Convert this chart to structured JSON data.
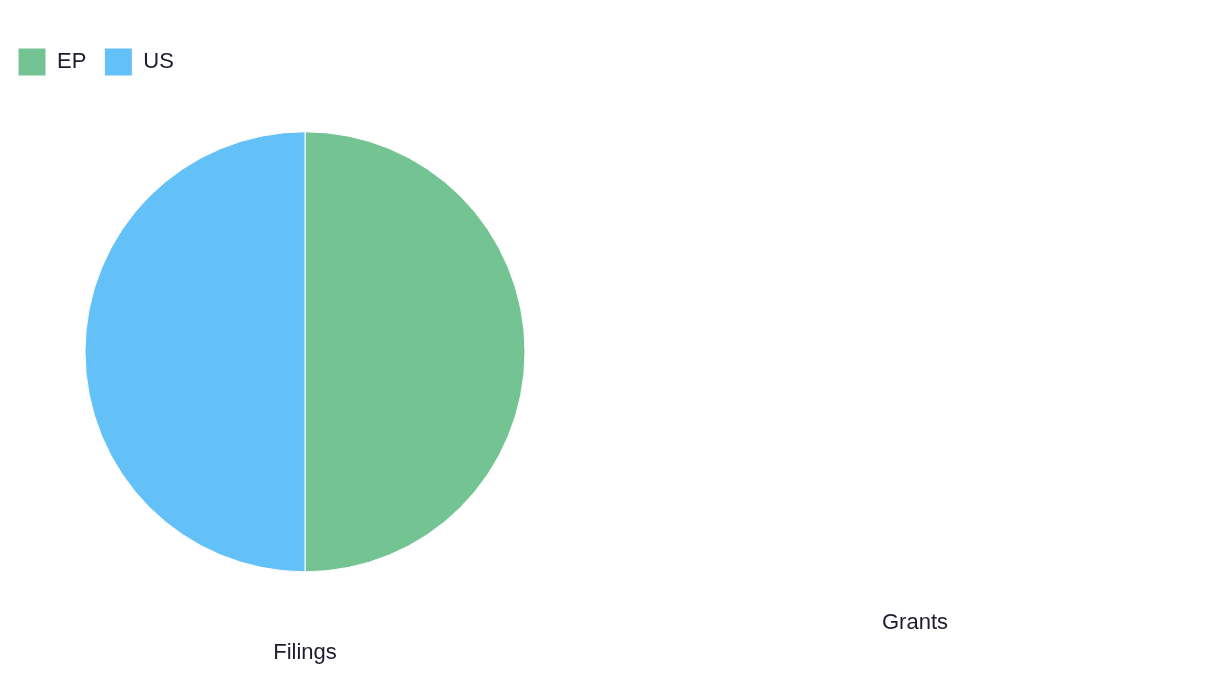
{
  "chart_data": [
    {
      "type": "pie",
      "title": "Filings",
      "categories": [
        "EP",
        "US"
      ],
      "values": [
        50,
        50
      ],
      "colors": [
        "#74c393",
        "#63c1f8"
      ],
      "legend": "top left"
    },
    {
      "type": "other",
      "title": "Grants"
    }
  ]
}
